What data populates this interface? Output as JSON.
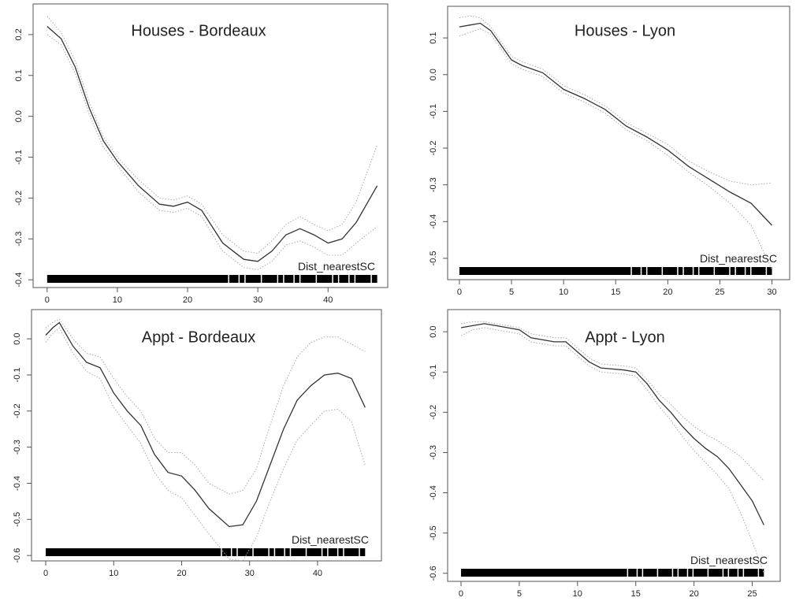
{
  "chart_data": [
    {
      "type": "line",
      "title": "Houses - Bordeaux",
      "xlabel": "Dist_nearestSC",
      "x": [
        0,
        2,
        4,
        6,
        8,
        10,
        13,
        16,
        18,
        20,
        22,
        25,
        28,
        30,
        32,
        34,
        36,
        38,
        40,
        42,
        44,
        47
      ],
      "series": [
        {
          "color": "#333333",
          "style": "solid",
          "values": [
            0.22,
            0.19,
            0.12,
            0.02,
            -0.06,
            -0.11,
            -0.17,
            -0.215,
            -0.22,
            -0.21,
            -0.23,
            -0.31,
            -0.35,
            -0.355,
            -0.33,
            -0.29,
            -0.275,
            -0.29,
            -0.31,
            -0.3,
            -0.26,
            -0.17
          ]
        },
        {
          "color": "#aaaaaa",
          "style": "dotted",
          "values": [
            0.245,
            0.205,
            0.135,
            0.035,
            -0.05,
            -0.1,
            -0.155,
            -0.2,
            -0.205,
            -0.195,
            -0.215,
            -0.29,
            -0.33,
            -0.335,
            -0.305,
            -0.265,
            -0.245,
            -0.265,
            -0.28,
            -0.265,
            -0.21,
            -0.07
          ]
        },
        {
          "color": "#aaaaaa",
          "style": "dotted",
          "values": [
            0.2,
            0.175,
            0.105,
            0.005,
            -0.075,
            -0.12,
            -0.185,
            -0.23,
            -0.235,
            -0.225,
            -0.245,
            -0.33,
            -0.37,
            -0.375,
            -0.355,
            -0.315,
            -0.305,
            -0.32,
            -0.34,
            -0.34,
            -0.31,
            -0.27
          ]
        }
      ],
      "xlim": [
        -2.0,
        48.5
      ],
      "ylim": [
        -0.419,
        0.275
      ],
      "xticks": [
        0,
        10,
        20,
        30,
        40
      ],
      "yticks": [
        -0.4,
        -0.3,
        -0.2,
        -0.1,
        {
          "value": 0,
          "label": "0.0"
        },
        0.1,
        0.2
      ]
    },
    {
      "type": "line",
      "title": "Houses - Lyon",
      "xlabel": "Dist_nearestSC",
      "x": [
        0,
        1,
        2,
        3,
        4,
        5,
        6,
        8,
        10,
        12,
        14,
        16,
        18,
        20,
        22,
        24,
        26,
        28,
        30
      ],
      "series": [
        {
          "color": "#333333",
          "style": "solid",
          "values": [
            0.13,
            0.135,
            0.14,
            0.12,
            0.08,
            0.04,
            0.025,
            0.005,
            -0.04,
            -0.065,
            -0.095,
            -0.14,
            -0.17,
            -0.205,
            -0.25,
            -0.285,
            -0.32,
            -0.35,
            -0.41
          ]
        },
        {
          "color": "#aaaaaa",
          "style": "dotted",
          "values": [
            0.155,
            0.16,
            0.155,
            0.13,
            0.09,
            0.05,
            0.035,
            0.015,
            -0.03,
            -0.055,
            -0.085,
            -0.13,
            -0.16,
            -0.19,
            -0.235,
            -0.265,
            -0.29,
            -0.3,
            -0.295
          ]
        },
        {
          "color": "#aaaaaa",
          "style": "dotted",
          "values": [
            0.105,
            0.115,
            0.125,
            0.11,
            0.07,
            0.03,
            0.015,
            -0.005,
            -0.05,
            -0.075,
            -0.105,
            -0.15,
            -0.18,
            -0.22,
            -0.265,
            -0.305,
            -0.35,
            -0.41,
            -0.53
          ]
        }
      ],
      "xlim": [
        -1.13,
        31.7
      ],
      "ylim": [
        -0.558,
        0.186
      ],
      "xticks": [
        0,
        5,
        10,
        15,
        20,
        25,
        30
      ],
      "yticks": [
        -0.5,
        -0.4,
        -0.3,
        -0.2,
        -0.1,
        {
          "value": 0,
          "label": "0.0"
        },
        0.1
      ]
    },
    {
      "type": "line",
      "title": "Appt - Bordeaux",
      "xlabel": "Dist_nearestSC",
      "x": [
        0,
        1,
        2,
        4,
        6,
        8,
        10,
        12,
        14,
        16,
        18,
        20,
        22,
        24,
        27,
        29,
        31,
        33,
        35,
        37,
        39,
        41,
        43,
        45,
        47
      ],
      "series": [
        {
          "color": "#333333",
          "style": "solid",
          "values": [
            0.01,
            0.03,
            0.045,
            -0.02,
            -0.065,
            -0.08,
            -0.15,
            -0.2,
            -0.24,
            -0.32,
            -0.37,
            -0.38,
            -0.42,
            -0.47,
            -0.52,
            -0.515,
            -0.45,
            -0.35,
            -0.25,
            -0.17,
            -0.13,
            -0.1,
            -0.095,
            -0.11,
            -0.19
          ]
        },
        {
          "color": "#aaaaaa",
          "style": "dotted",
          "values": [
            0.03,
            0.045,
            0.055,
            0.0,
            -0.04,
            -0.05,
            -0.11,
            -0.16,
            -0.2,
            -0.275,
            -0.315,
            -0.315,
            -0.35,
            -0.4,
            -0.43,
            -0.42,
            -0.36,
            -0.24,
            -0.13,
            -0.05,
            -0.01,
            0.005,
            0.005,
            -0.015,
            -0.035
          ]
        },
        {
          "color": "#aaaaaa",
          "style": "dotted",
          "values": [
            -0.01,
            0.015,
            0.03,
            -0.04,
            -0.09,
            -0.11,
            -0.19,
            -0.24,
            -0.29,
            -0.37,
            -0.42,
            -0.44,
            -0.49,
            -0.54,
            -0.61,
            -0.615,
            -0.55,
            -0.45,
            -0.36,
            -0.28,
            -0.24,
            -0.2,
            -0.195,
            -0.23,
            -0.35
          ]
        }
      ],
      "xlim": [
        -2.09,
        49.4
      ],
      "ylim": [
        -0.615,
        0.081
      ],
      "xticks": [
        0,
        10,
        20,
        30,
        40
      ],
      "yticks": [
        -0.6,
        -0.5,
        -0.4,
        -0.3,
        -0.2,
        -0.1,
        {
          "value": 0,
          "label": "0.0"
        }
      ]
    },
    {
      "type": "line",
      "title": "Appt - Lyon",
      "xlabel": "Dist_nearestSC",
      "x": [
        0,
        1,
        2,
        3,
        4,
        5,
        6,
        8,
        9,
        10,
        11,
        12,
        14,
        15,
        16,
        17,
        18,
        19,
        20,
        21,
        22,
        23,
        24,
        25,
        26
      ],
      "series": [
        {
          "color": "#333333",
          "style": "solid",
          "values": [
            0.01,
            0.015,
            0.02,
            0.015,
            0.01,
            0.005,
            -0.015,
            -0.025,
            -0.025,
            -0.05,
            -0.075,
            -0.09,
            -0.095,
            -0.1,
            -0.13,
            -0.17,
            -0.2,
            -0.235,
            -0.265,
            -0.29,
            -0.31,
            -0.34,
            -0.38,
            -0.42,
            -0.48
          ]
        },
        {
          "color": "#aaaaaa",
          "style": "dotted",
          "values": [
            0.02,
            0.025,
            0.025,
            0.02,
            0.015,
            0.01,
            -0.005,
            -0.015,
            -0.015,
            -0.04,
            -0.065,
            -0.08,
            -0.085,
            -0.09,
            -0.12,
            -0.155,
            -0.18,
            -0.21,
            -0.235,
            -0.255,
            -0.27,
            -0.29,
            -0.31,
            -0.34,
            -0.37
          ]
        },
        {
          "color": "#aaaaaa",
          "style": "dotted",
          "values": [
            -0.01,
            0.005,
            0.01,
            0.005,
            0.0,
            -0.005,
            -0.025,
            -0.035,
            -0.035,
            -0.06,
            -0.085,
            -0.1,
            -0.105,
            -0.11,
            -0.145,
            -0.185,
            -0.22,
            -0.26,
            -0.295,
            -0.325,
            -0.355,
            -0.39,
            -0.45,
            -0.52,
            -0.6
          ]
        }
      ],
      "xlim": [
        -1.15,
        27.4
      ],
      "ylim": [
        -0.62,
        0.055
      ],
      "xticks": [
        0,
        5,
        10,
        15,
        20,
        25
      ],
      "yticks": [
        -0.6,
        -0.5,
        -0.4,
        -0.3,
        -0.2,
        -0.1,
        {
          "value": 0,
          "label": "0.0"
        }
      ]
    }
  ]
}
